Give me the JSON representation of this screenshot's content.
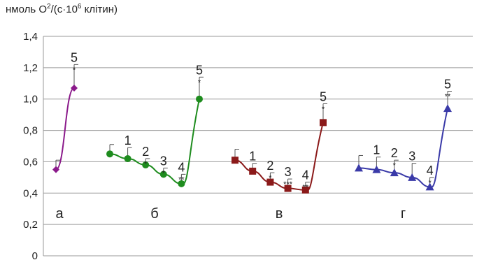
{
  "chart_data": {
    "type": "line",
    "ylabel_parts": {
      "pre": "нмоль O",
      "sup1": "2",
      "mid": "/(с·10",
      "sup2": "6",
      "post": " клітин)"
    },
    "yticks": [
      "0",
      "0,2",
      "0,4",
      "0,6",
      "0,8",
      "1,0",
      "1,2",
      "1,4"
    ],
    "ylim": [
      0,
      1.4
    ],
    "grid": true,
    "groups": [
      {
        "name": "а",
        "color": "#8B1A8B",
        "marker": "diamond",
        "x": [
          1,
          2
        ],
        "values": [
          0.55,
          1.07
        ],
        "errors": [
          0.06,
          0.15
        ],
        "point_labels": [
          "",
          "5"
        ],
        "significance": [
          "",
          "*"
        ]
      },
      {
        "name": "б",
        "color": "#1E8C1E",
        "marker": "circle",
        "x": [
          1,
          2,
          3,
          4,
          5,
          6
        ],
        "values": [
          0.65,
          0.62,
          0.58,
          0.52,
          0.46,
          1.0
        ],
        "errors": [
          0.06,
          0.07,
          0.04,
          0.04,
          0.06,
          0.14
        ],
        "point_labels": [
          "",
          "1",
          "2",
          "3",
          "4",
          "5"
        ],
        "significance": [
          "",
          "",
          "*",
          "*",
          "**",
          "*"
        ]
      },
      {
        "name": "в",
        "color": "#8B1A1A",
        "marker": "square",
        "x": [
          1,
          2,
          3,
          4,
          5,
          6
        ],
        "values": [
          0.61,
          0.54,
          0.47,
          0.43,
          0.42,
          0.85
        ],
        "errors": [
          0.07,
          0.05,
          0.06,
          0.06,
          0.05,
          0.12
        ],
        "point_labels": [
          "",
          "1",
          "2",
          "3",
          "4",
          "5"
        ],
        "significance": [
          "",
          "",
          "*",
          "***",
          "**",
          "*"
        ]
      },
      {
        "name": "г",
        "color": "#3A3AA8",
        "marker": "triangle",
        "x": [
          1,
          2,
          3,
          4,
          5,
          6
        ],
        "values": [
          0.56,
          0.55,
          0.53,
          0.5,
          0.44,
          0.94
        ],
        "errors": [
          0.08,
          0.08,
          0.08,
          0.09,
          0.06,
          0.11
        ],
        "point_labels": [
          "",
          "1",
          "2",
          "3",
          "4",
          "5"
        ],
        "significance": [
          "",
          "",
          "*",
          "",
          "*",
          "**"
        ]
      }
    ]
  }
}
